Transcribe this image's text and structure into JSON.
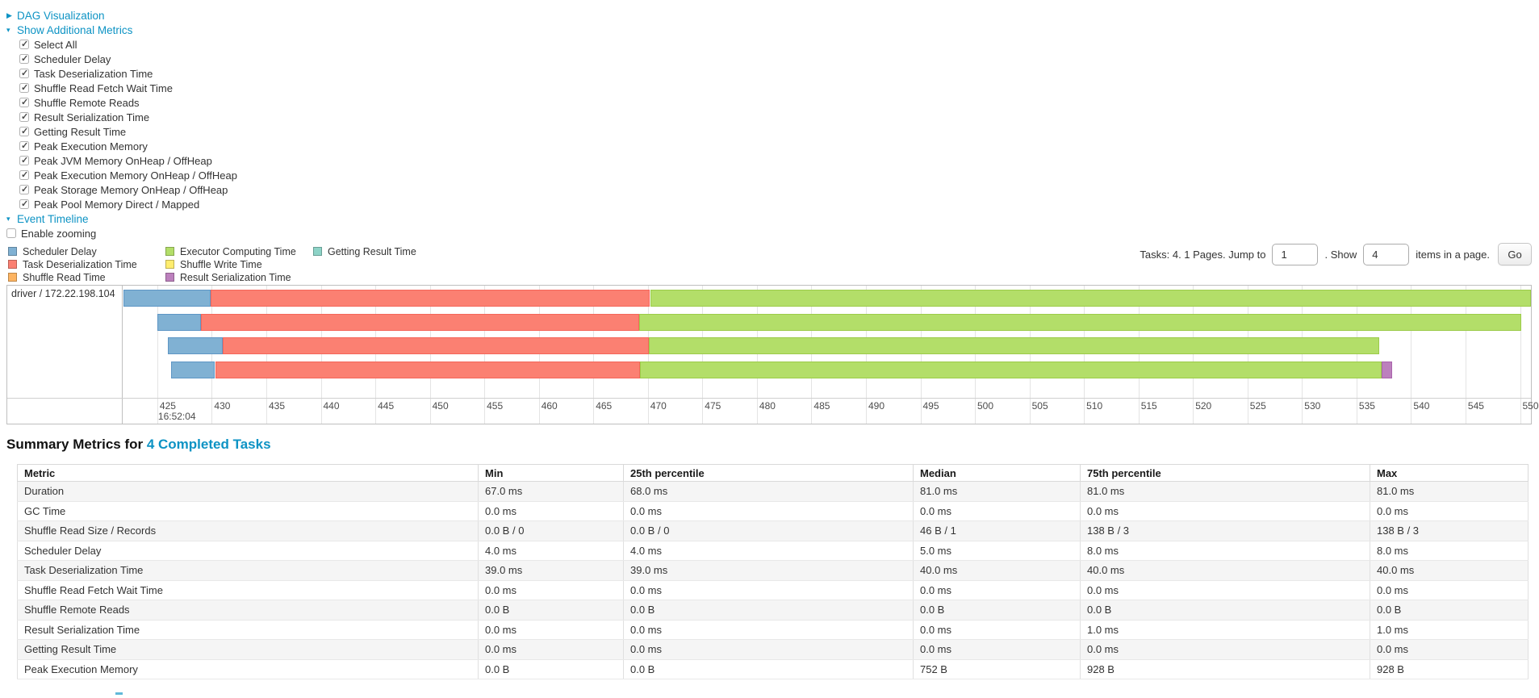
{
  "theme": {
    "link_color": "#0d93c4"
  },
  "toggles": {
    "dag": "DAG Visualization",
    "metrics": "Show Additional Metrics",
    "timeline": "Event Timeline"
  },
  "metric_checkboxes": [
    {
      "label": "Select All",
      "checked": true
    },
    {
      "label": "Scheduler Delay",
      "checked": true
    },
    {
      "label": "Task Deserialization Time",
      "checked": true
    },
    {
      "label": "Shuffle Read Fetch Wait Time",
      "checked": true
    },
    {
      "label": "Shuffle Remote Reads",
      "checked": true
    },
    {
      "label": "Result Serialization Time",
      "checked": true
    },
    {
      "label": "Getting Result Time",
      "checked": true
    },
    {
      "label": "Peak Execution Memory",
      "checked": true
    },
    {
      "label": "Peak JVM Memory OnHeap / OffHeap",
      "checked": true
    },
    {
      "label": "Peak Execution Memory OnHeap / OffHeap",
      "checked": true
    },
    {
      "label": "Peak Storage Memory OnHeap / OffHeap",
      "checked": true
    },
    {
      "label": "Peak Pool Memory Direct / Mapped",
      "checked": true
    }
  ],
  "enable_zooming": {
    "label": "Enable zooming",
    "checked": false
  },
  "legend_columns": [
    [
      {
        "label": "Scheduler Delay",
        "color": "#80b1d3"
      },
      {
        "label": "Task Deserialization Time",
        "color": "#fb8072"
      },
      {
        "label": "Shuffle Read Time",
        "color": "#fdb462"
      }
    ],
    [
      {
        "label": "Executor Computing Time",
        "color": "#b3de69"
      },
      {
        "label": "Shuffle Write Time",
        "color": "#ffed6f"
      },
      {
        "label": "Result Serialization Time",
        "color": "#bc80bd"
      }
    ],
    [
      {
        "label": "Getting Result Time",
        "color": "#8dd3c7"
      }
    ]
  ],
  "pagination": {
    "tasks_text": "Tasks: 4. 1 Pages. Jump to",
    "jump_value": "1",
    "show_text": ". Show",
    "show_value": "4",
    "items_text": "items in a page.",
    "go_label": "Go"
  },
  "chart_data": {
    "type": "timeline",
    "group_label": "driver / 172.22.198.104",
    "axis": {
      "unit": "ms",
      "min": 421.9,
      "max": 551.0,
      "tick_start": 425,
      "tick_end": 550,
      "tick_step": 5,
      "major_label": "16:52:04"
    },
    "colors": {
      "scheduler_delay": "#80b1d3",
      "task_deserialization": "#fb8072",
      "shuffle_read": "#fdb462",
      "executor_computing": "#b3de69",
      "shuffle_write": "#ffed6f",
      "result_serialization": "#bc80bd",
      "getting_result": "#8dd3c7"
    },
    "tasks": [
      {
        "segments": [
          {
            "metric": "scheduler_delay",
            "start": 421.9,
            "end": 429.9
          },
          {
            "metric": "task_deserialization",
            "start": 429.9,
            "end": 470.2
          },
          {
            "metric": "executor_computing",
            "start": 470.2,
            "end": 551.0
          }
        ]
      },
      {
        "segments": [
          {
            "metric": "scheduler_delay",
            "start": 425.0,
            "end": 429.0
          },
          {
            "metric": "task_deserialization",
            "start": 429.0,
            "end": 469.2
          },
          {
            "metric": "executor_computing",
            "start": 469.2,
            "end": 550.1
          }
        ]
      },
      {
        "segments": [
          {
            "metric": "scheduler_delay",
            "start": 426.0,
            "end": 431.0
          },
          {
            "metric": "task_deserialization",
            "start": 431.0,
            "end": 470.1
          },
          {
            "metric": "executor_computing",
            "start": 470.1,
            "end": 537.1
          }
        ]
      },
      {
        "segments": [
          {
            "metric": "scheduler_delay",
            "start": 426.3,
            "end": 430.3
          },
          {
            "metric": "task_deserialization",
            "start": 430.3,
            "end": 469.3
          },
          {
            "metric": "executor_computing",
            "start": 469.3,
            "end": 537.3
          },
          {
            "metric": "result_serialization",
            "start": 537.3,
            "end": 538.3
          }
        ]
      }
    ]
  },
  "summary": {
    "title_prefix": "Summary Metrics for ",
    "title_link": "4 Completed Tasks",
    "columns": [
      "Metric",
      "Min",
      "25th percentile",
      "Median",
      "75th percentile",
      "Max"
    ],
    "rows": [
      {
        "metric": "Duration",
        "values": [
          "67.0 ms",
          "68.0 ms",
          "81.0 ms",
          "81.0 ms",
          "81.0 ms"
        ]
      },
      {
        "metric": "GC Time",
        "values": [
          "0.0 ms",
          "0.0 ms",
          "0.0 ms",
          "0.0 ms",
          "0.0 ms"
        ]
      },
      {
        "metric": "Shuffle Read Size / Records",
        "values": [
          "0.0 B / 0",
          "0.0 B / 0",
          "46 B / 1",
          "138 B / 3",
          "138 B / 3"
        ]
      },
      {
        "metric": "Scheduler Delay",
        "values": [
          "4.0 ms",
          "4.0 ms",
          "5.0 ms",
          "8.0 ms",
          "8.0 ms"
        ]
      },
      {
        "metric": "Task Deserialization Time",
        "values": [
          "39.0 ms",
          "39.0 ms",
          "40.0 ms",
          "40.0 ms",
          "40.0 ms"
        ]
      },
      {
        "metric": "Shuffle Read Fetch Wait Time",
        "values": [
          "0.0 ms",
          "0.0 ms",
          "0.0 ms",
          "0.0 ms",
          "0.0 ms"
        ]
      },
      {
        "metric": "Shuffle Remote Reads",
        "values": [
          "0.0 B",
          "0.0 B",
          "0.0 B",
          "0.0 B",
          "0.0 B"
        ]
      },
      {
        "metric": "Result Serialization Time",
        "values": [
          "0.0 ms",
          "0.0 ms",
          "0.0 ms",
          "1.0 ms",
          "1.0 ms"
        ]
      },
      {
        "metric": "Getting Result Time",
        "values": [
          "0.0 ms",
          "0.0 ms",
          "0.0 ms",
          "0.0 ms",
          "0.0 ms"
        ]
      },
      {
        "metric": "Peak Execution Memory",
        "values": [
          "0.0 B",
          "0.0 B",
          "752 B",
          "928 B",
          "928 B"
        ]
      }
    ]
  }
}
